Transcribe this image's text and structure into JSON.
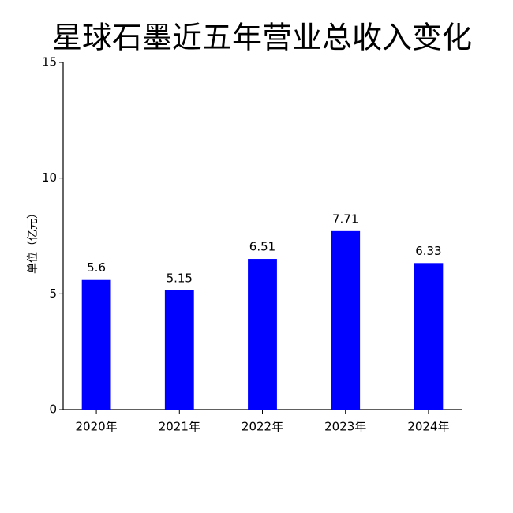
{
  "chart_data": {
    "type": "bar",
    "title": "星球石墨近五年营业总收入变化",
    "y_label": "单位（亿元）",
    "categories": [
      "2020年",
      "2021年",
      "2022年",
      "2023年",
      "2024年"
    ],
    "values": [
      5.6,
      5.15,
      6.51,
      7.71,
      6.33
    ],
    "color": "#0000ff",
    "ylim": [
      0,
      15
    ],
    "yticks": [
      0,
      5,
      10,
      15
    ],
    "grid": false
  }
}
